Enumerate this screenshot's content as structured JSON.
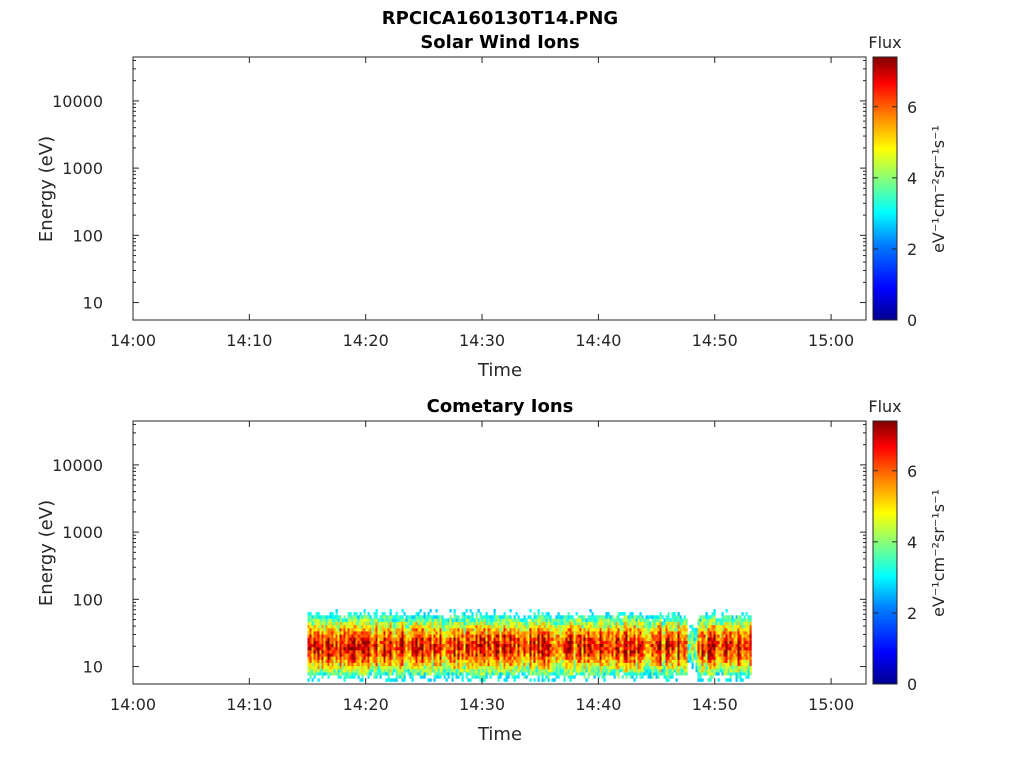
{
  "figure": {
    "title": "RPCICA160130T14.PNG"
  },
  "colors": {
    "axis": "#262626",
    "colormap": [
      "#00008f",
      "#0000ff",
      "#0080ff",
      "#00ffff",
      "#80ff80",
      "#ffff00",
      "#ff8000",
      "#ff0000",
      "#800000"
    ]
  },
  "chart_data": [
    {
      "type": "heatmap",
      "title": "Solar Wind Ions",
      "xlabel": "Time",
      "ylabel": "Energy (eV)",
      "x_ticks": [
        "14:00",
        "14:10",
        "14:20",
        "14:30",
        "14:40",
        "14:50",
        "15:00"
      ],
      "xlim": [
        "14:00",
        "15:03"
      ],
      "y_scale": "log",
      "y_ticks": [
        "10",
        "100",
        "1000",
        "10000"
      ],
      "ylim": [
        5.5,
        45000
      ],
      "colorbar": {
        "label": "Flux",
        "unit": "eV⁻¹cm⁻²sr⁻¹s⁻¹",
        "ticks": [
          "0",
          "2",
          "4",
          "6"
        ],
        "range": [
          0,
          7.4
        ]
      },
      "data": []
    },
    {
      "type": "heatmap",
      "title": "Cometary Ions",
      "xlabel": "Time",
      "ylabel": "Energy (eV)",
      "x_ticks": [
        "14:00",
        "14:10",
        "14:20",
        "14:30",
        "14:40",
        "14:50",
        "15:00"
      ],
      "xlim": [
        "14:00",
        "15:03"
      ],
      "y_scale": "log",
      "y_ticks": [
        "10",
        "100",
        "1000",
        "10000"
      ],
      "ylim": [
        5.5,
        45000
      ],
      "colorbar": {
        "label": "Flux",
        "unit": "eV⁻¹cm⁻²sr⁻¹s⁻¹",
        "ticks": [
          "0",
          "2",
          "4",
          "6"
        ],
        "range": [
          0,
          7.4
        ]
      },
      "data": [
        {
          "time_start": "14:15",
          "time_end": "14:53",
          "energy_min": 6,
          "energy_max": 80,
          "peak_energy": 20,
          "peak_flux": 7.2,
          "gap_near": "14:48"
        }
      ]
    }
  ]
}
